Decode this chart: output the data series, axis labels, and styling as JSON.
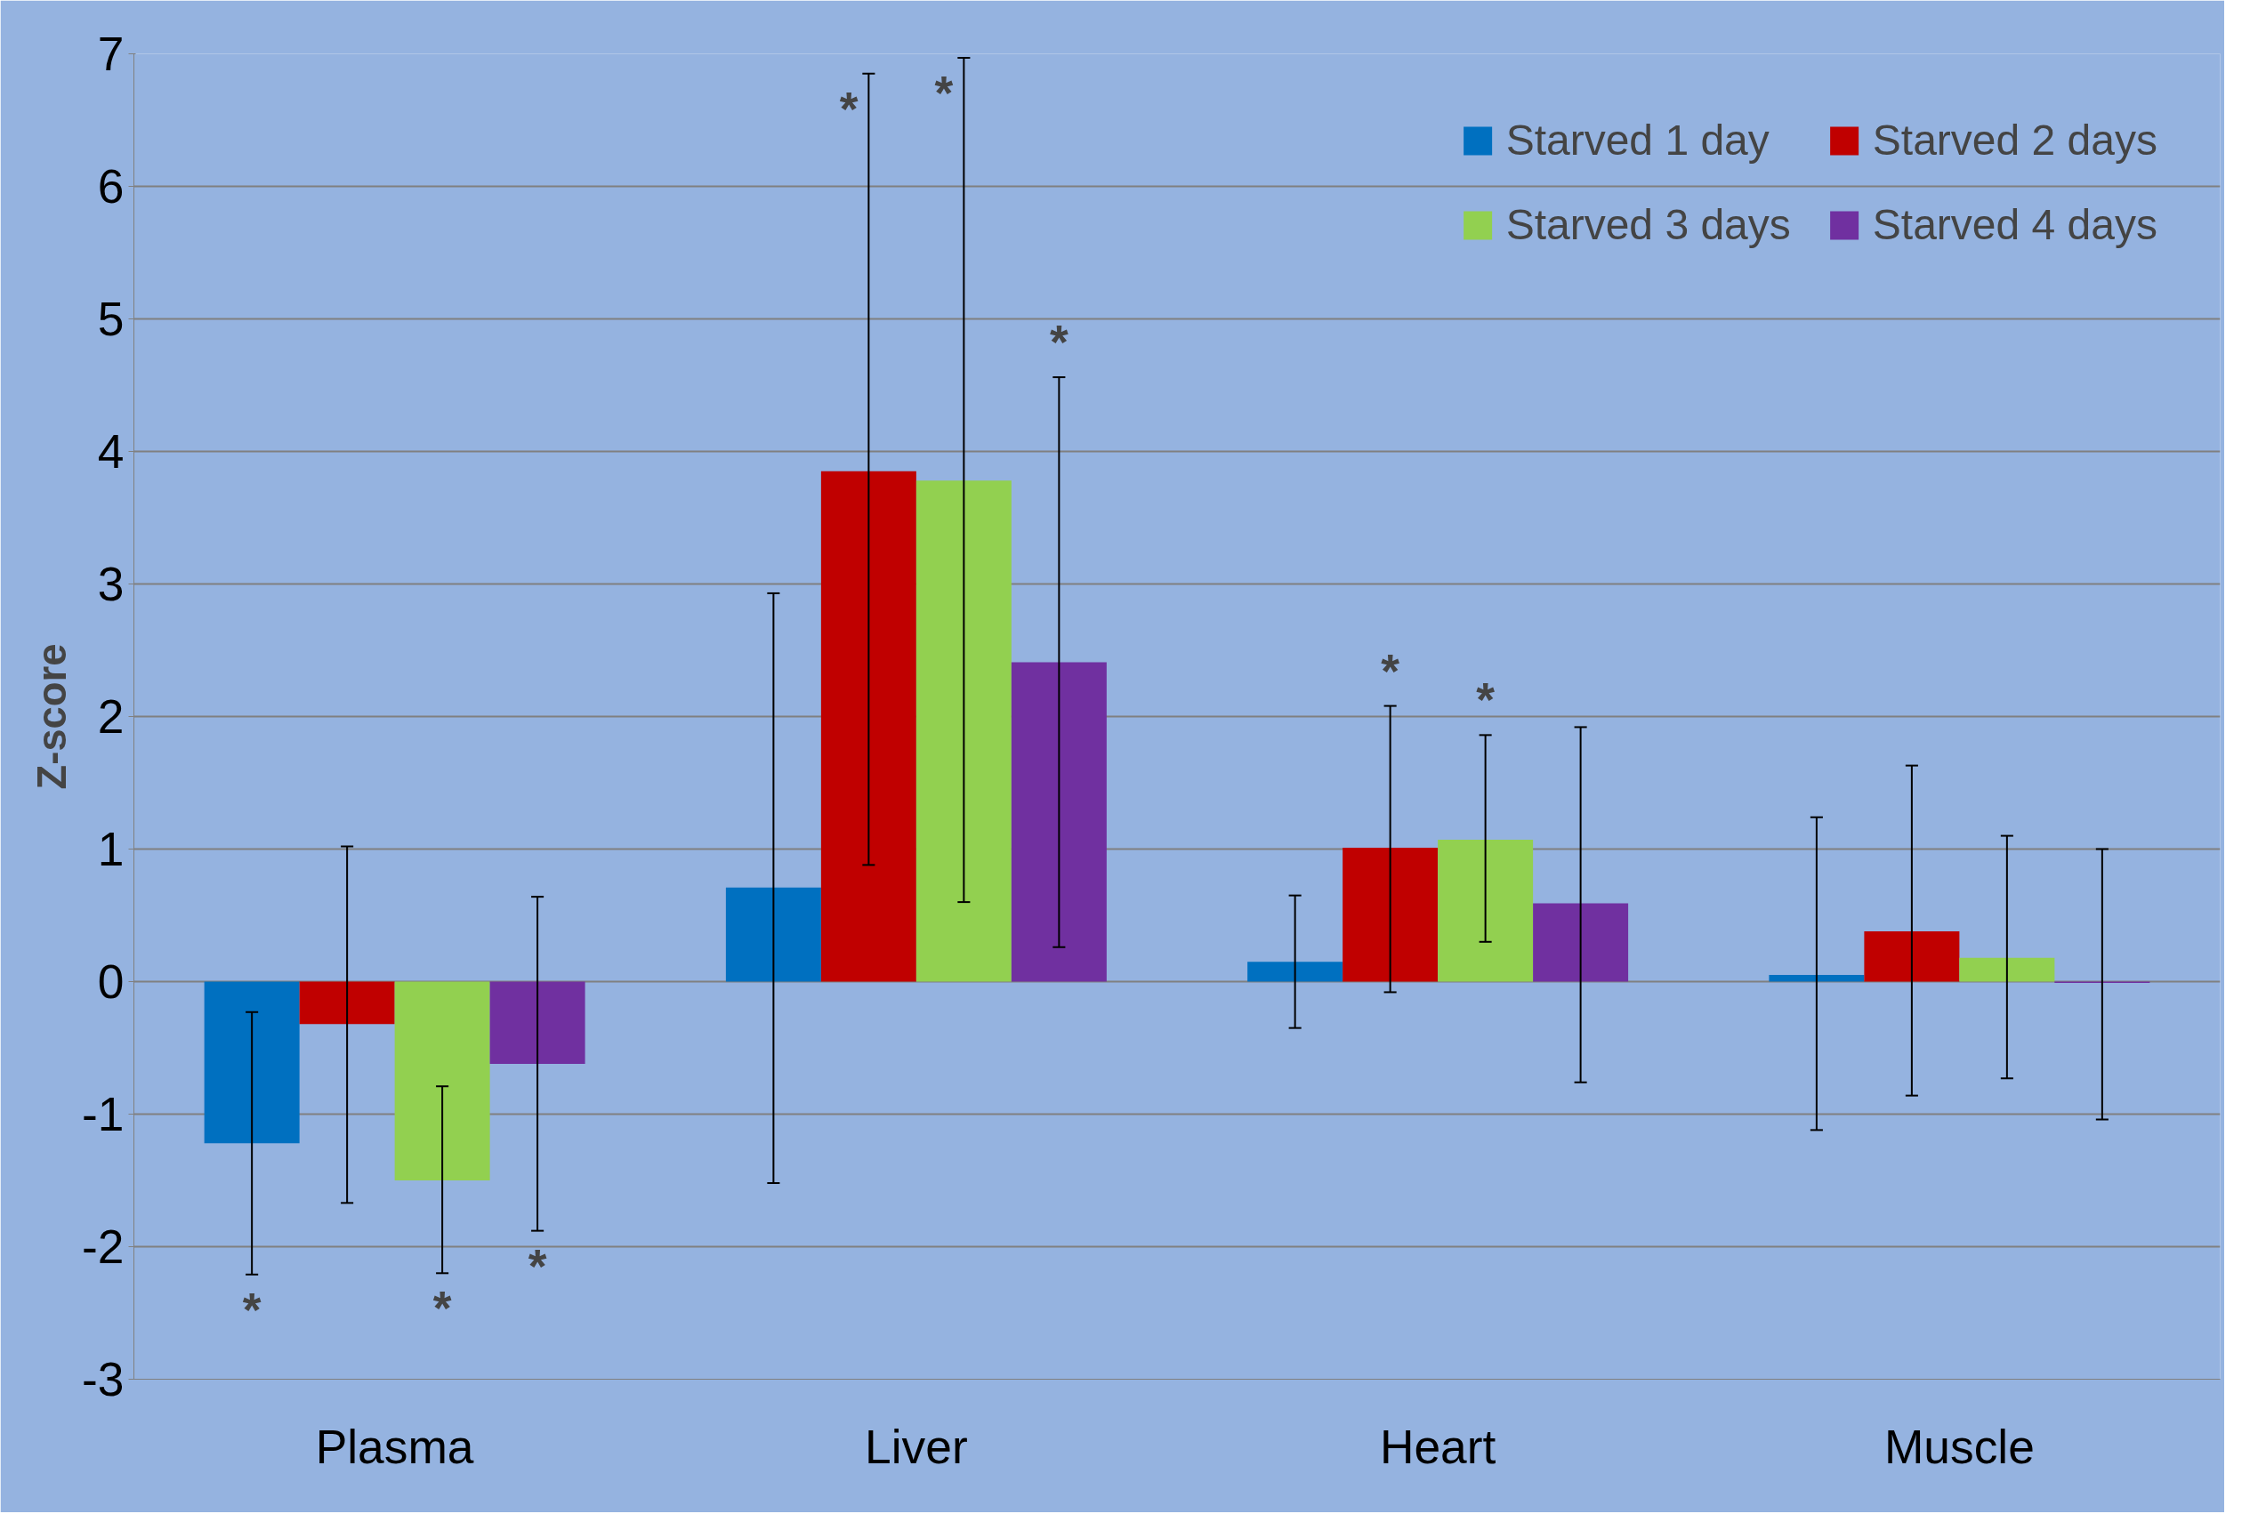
{
  "chart_data": {
    "type": "bar",
    "ylabel": "Z-score",
    "categories": [
      "Plasma",
      "Liver",
      "Heart",
      "Muscle"
    ],
    "ylim": [
      -3,
      7
    ],
    "yticks": [
      -3,
      -2,
      -1,
      0,
      1,
      2,
      3,
      4,
      5,
      6,
      7
    ],
    "grid": "y",
    "legend": "top right",
    "series": [
      {
        "name": "Starved 1 day",
        "color": "#0070c0",
        "values": [
          -1.22,
          0.71,
          0.15,
          0.05
        ],
        "errors": [
          [
            -2.21,
            -0.23
          ],
          [
            -1.52,
            2.93
          ],
          [
            -0.35,
            0.65
          ],
          [
            -1.12,
            1.24
          ]
        ]
      },
      {
        "name": "Starved 2 days",
        "color": "#c00000",
        "values": [
          -0.32,
          3.85,
          1.01,
          0.38
        ],
        "errors": [
          [
            -1.67,
            1.02
          ],
          [
            0.88,
            6.85
          ],
          [
            -0.08,
            2.08
          ],
          [
            -0.86,
            1.63
          ]
        ]
      },
      {
        "name": "Starved 3 days",
        "color": "#92d050",
        "values": [
          -1.5,
          3.78,
          1.07,
          0.18
        ],
        "errors": [
          [
            -2.2,
            -0.79
          ],
          [
            0.6,
            6.97
          ],
          [
            0.3,
            1.86
          ],
          [
            -0.73,
            1.1
          ]
        ]
      },
      {
        "name": "Starved 4 days",
        "color": "#7030a0",
        "values": [
          -0.62,
          2.41,
          0.59,
          -0.01
        ],
        "errors": [
          [
            -1.88,
            0.64
          ],
          [
            0.26,
            4.56
          ],
          [
            -0.76,
            1.92
          ],
          [
            -1.04,
            1.0
          ]
        ]
      }
    ],
    "annotations": [
      "*",
      "*",
      "*",
      "*",
      "*",
      "*",
      "*",
      "*"
    ]
  }
}
